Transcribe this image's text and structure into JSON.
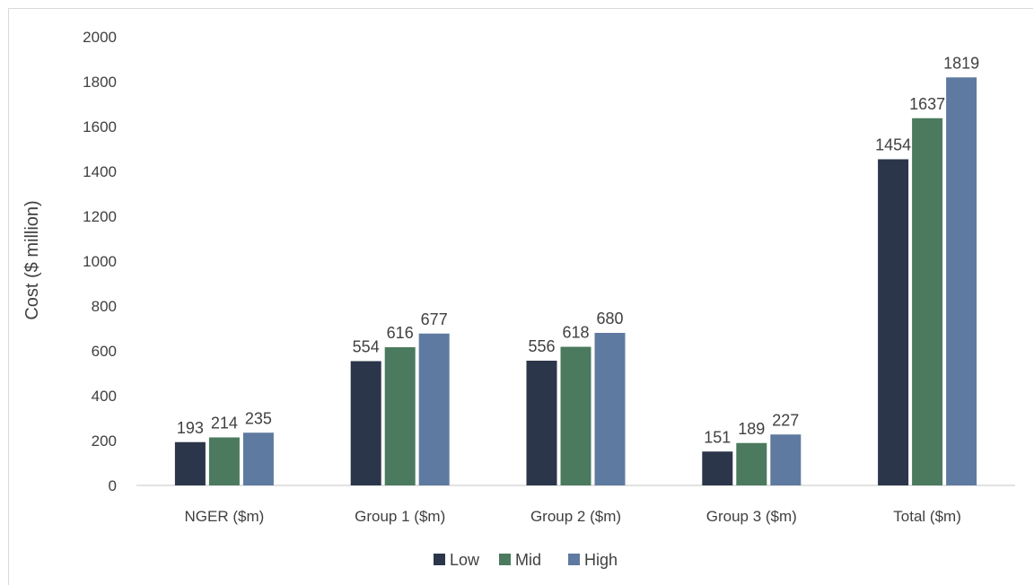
{
  "chart_data": {
    "type": "bar",
    "title": "",
    "xlabel": "",
    "ylabel": "Cost ($ million)",
    "ylim": [
      0,
      2000
    ],
    "yticks": [
      0,
      200,
      400,
      600,
      800,
      1000,
      1200,
      1400,
      1600,
      1800,
      2000
    ],
    "grid": false,
    "legend_position": "bottom",
    "categories": [
      "NGER ($m)",
      "Group 1 ($m)",
      "Group 2 ($m)",
      "Group 3 ($m)",
      "Total ($m)"
    ],
    "series": [
      {
        "name": "Low",
        "color": "#2b364a",
        "values": [
          193,
          554,
          556,
          151,
          1454
        ]
      },
      {
        "name": "Mid",
        "color": "#4b7a5f",
        "values": [
          214,
          616,
          618,
          189,
          1637
        ]
      },
      {
        "name": "High",
        "color": "#5f7aa0",
        "values": [
          235,
          677,
          680,
          227,
          1819
        ]
      }
    ]
  }
}
